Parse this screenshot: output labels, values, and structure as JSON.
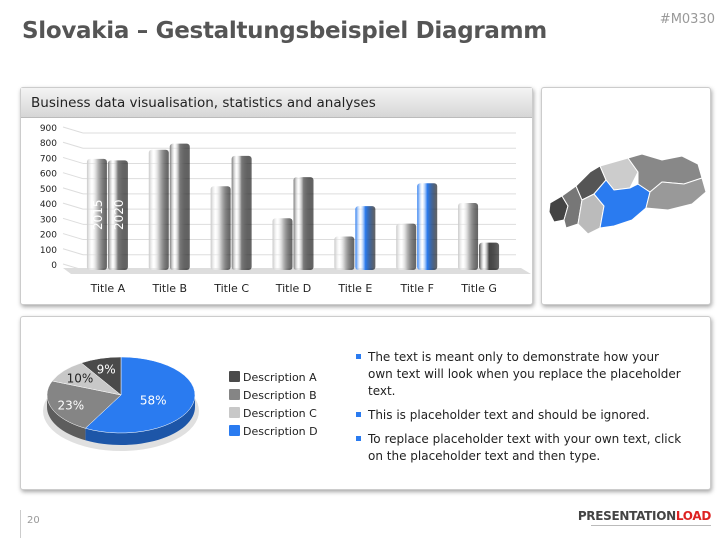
{
  "header": {
    "title": "Slovakia – Gestaltungsbeispiel Diagramm",
    "code": "#M0330"
  },
  "chart_panel": {
    "title": "Business data visualisation, statistics and analyses"
  },
  "chart_data": [
    {
      "type": "bar",
      "title": "Business data visualisation, statistics and analyses",
      "categories": [
        "Title A",
        "Title B",
        "Title C",
        "Title D",
        "Title E",
        "Title F",
        "Title G"
      ],
      "series": [
        {
          "name": "2015",
          "values": [
            730,
            790,
            550,
            340,
            220,
            305,
            440
          ]
        },
        {
          "name": "2020",
          "values": [
            720,
            830,
            750,
            610,
            420,
            570,
            180
          ]
        }
      ],
      "series2_colors": [
        "#7a7a7a",
        "#7a7a7a",
        "#7a7a7a",
        "#7a7a7a",
        "#2a7bf0",
        "#2a7bf0",
        "#444444"
      ],
      "ylim": [
        0,
        900
      ],
      "yticks": [
        0,
        100,
        200,
        300,
        400,
        500,
        600,
        700,
        800,
        900
      ],
      "grid": true
    },
    {
      "type": "pie",
      "labels": [
        "Description A",
        "Description B",
        "Description C",
        "Description D"
      ],
      "values": [
        9,
        23,
        10,
        58
      ],
      "colors": [
        "#4a4a4a",
        "#858585",
        "#c8c8c8",
        "#2a7bf0"
      ]
    }
  ],
  "bullets": [
    "The text is meant only to demonstrate how your own text will look when you replace the placeholder text.",
    "This is placeholder text and should be ignored.",
    "To replace placeholder text with your own text, click on the placeholder text and then type."
  ],
  "footer": {
    "page": "20",
    "logo_a": "PRESENTATION",
    "logo_b": "LOAD"
  }
}
